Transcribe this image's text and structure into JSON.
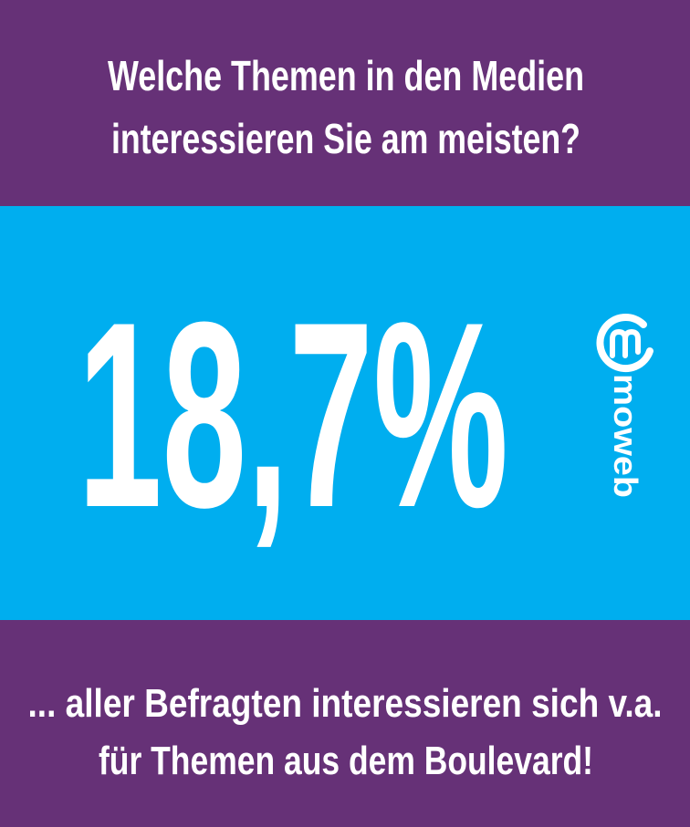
{
  "header": {
    "title_lines": [
      "Welche Themen in den Medien",
      "interessieren Sie am meisten?"
    ]
  },
  "stat": {
    "value_text": "18,7%"
  },
  "logo": {
    "text": "moweb"
  },
  "footer": {
    "lines": [
      "... aller Befragten interessieren sich v.a.",
      "für Themen aus dem Boulevard!"
    ]
  }
}
